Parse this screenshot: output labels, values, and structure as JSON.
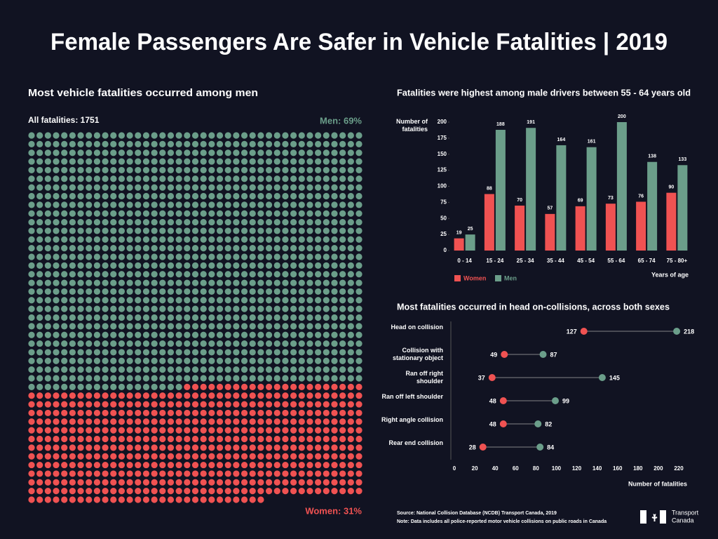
{
  "title": "Female Passengers Are Safer in Vehicle Fatalities | 2019",
  "chart_data": [
    {
      "type": "waffle",
      "title": "Most vehicle fatalities occurred among men",
      "total": 1751,
      "total_label": "All fatalities: 1751",
      "series": [
        {
          "label": "Men: 69%",
          "value": 69,
          "color": "#6b9e8a"
        },
        {
          "label": "Women: 31%",
          "value": 31,
          "color": "#f05252"
        }
      ]
    },
    {
      "type": "bar",
      "title": "Fatalities were highest among male drivers between 55 - 64 years old",
      "y_label": "Number of fatalities",
      "x_label": "Years of age",
      "categories": [
        "0 - 14",
        "15 - 24",
        "25 - 34",
        "35 - 44",
        "45 - 54",
        "55 - 64",
        "65 - 74",
        "75 - 80+"
      ],
      "series": [
        {
          "name": "Women",
          "color": "#f05252",
          "values": [
            19,
            88,
            70,
            57,
            69,
            73,
            76,
            90
          ]
        },
        {
          "name": "Men",
          "color": "#6b9e8a",
          "values": [
            25,
            188,
            191,
            164,
            161,
            200,
            138,
            133
          ]
        }
      ],
      "ylim": [
        0,
        200
      ],
      "yticks": [
        0,
        25,
        50,
        75,
        100,
        125,
        150,
        175,
        200
      ]
    },
    {
      "type": "dumbbell",
      "title": "Most fatalities occurred in head on-collisions, across both sexes",
      "x_label": "Number of fatalities",
      "categories": [
        "Head on collision",
        "Collision with stationary object",
        "Ran off right shoulder",
        "Ran off left shoulder",
        "Right angle collision",
        "Rear end collision"
      ],
      "series": [
        {
          "color": "#f05252",
          "values": [
            127,
            49,
            37,
            48,
            48,
            28
          ]
        },
        {
          "color": "#6b9e8a",
          "values": [
            218,
            87,
            145,
            99,
            82,
            84
          ]
        }
      ],
      "xlim": [
        0,
        220
      ],
      "xticks": [
        0,
        20,
        40,
        60,
        80,
        100,
        120,
        140,
        160,
        180,
        200,
        220
      ]
    }
  ],
  "footer": {
    "source": "Source: National Collision Database (NCDB) Transport Canada, 2019",
    "note": "Note: Data includes all police-reported motor vehicle collisions on public roads in Canada"
  },
  "logo": {
    "lines": [
      "Transport",
      "Canada"
    ]
  }
}
